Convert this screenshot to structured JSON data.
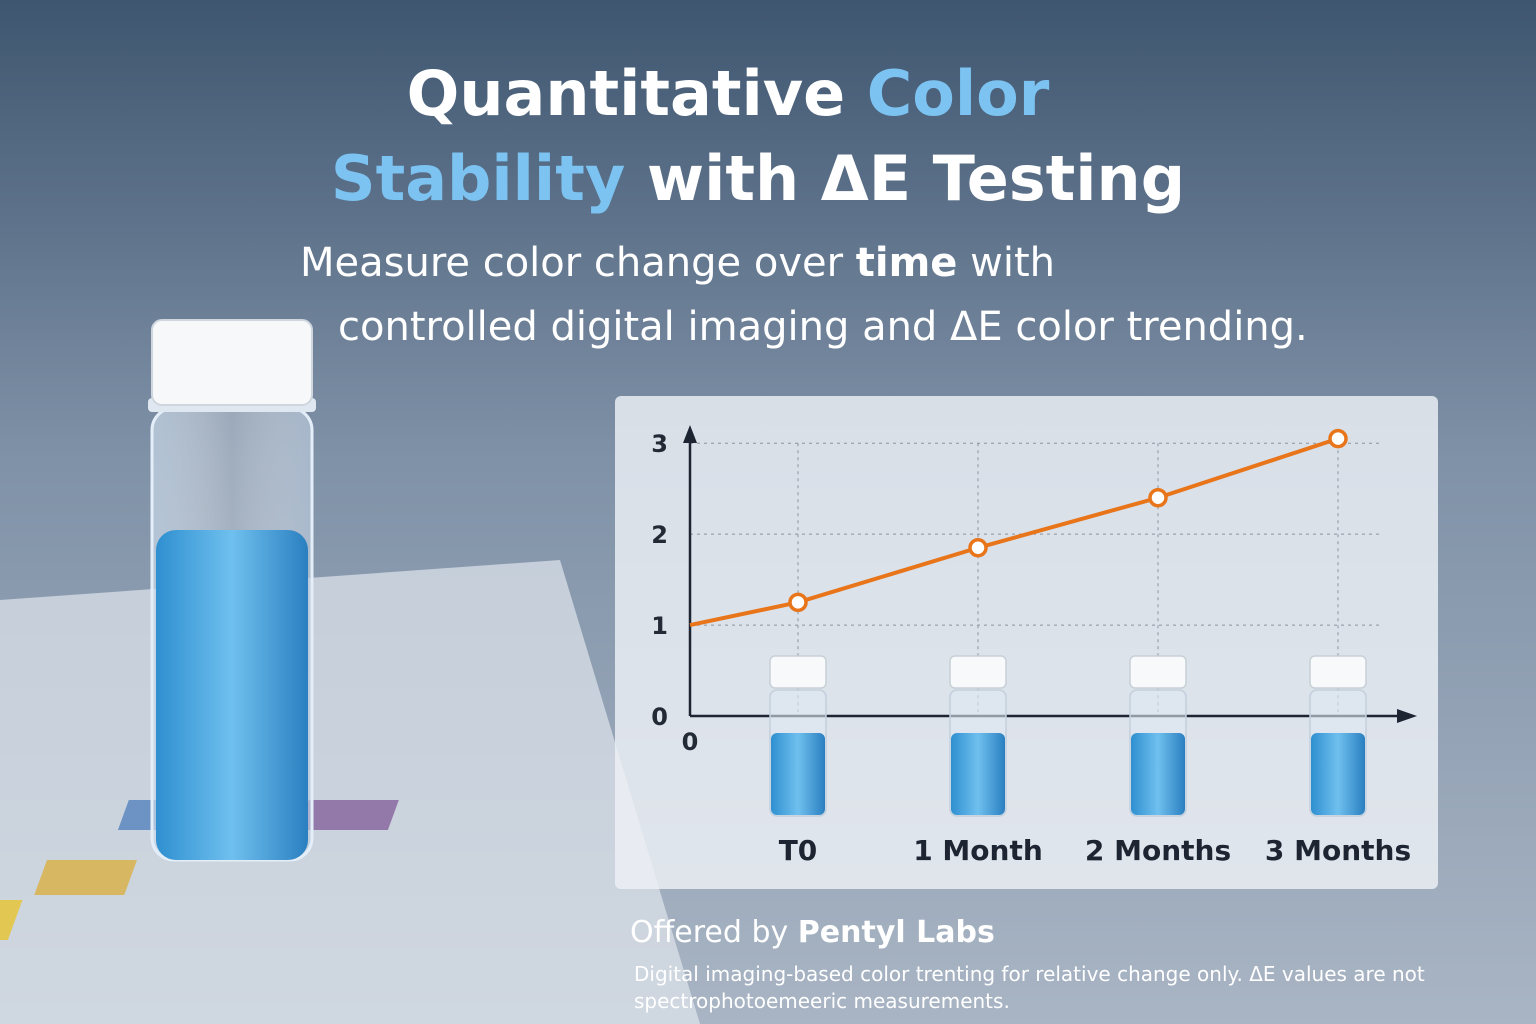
{
  "header": {
    "title": {
      "line1": [
        "Quantitative",
        "Color"
      ],
      "line2": [
        "Stability",
        "with ΔE Testing"
      ]
    },
    "subtitle": {
      "line1": [
        "Measure color change over",
        "time",
        "with"
      ],
      "line2": "controlled digital imaging and ΔE color trending."
    }
  },
  "chart_data": {
    "type": "line",
    "categories": [
      "0",
      "T0",
      "1 Month",
      "2 Months",
      "3 Months"
    ],
    "values": [
      1,
      1.25,
      1.85,
      2.4,
      3.05
    ],
    "color": "#e8751a",
    "ylim": [
      0,
      3.2
    ],
    "yticks": [
      0,
      1,
      2,
      3
    ],
    "grid": true
  },
  "footer": {
    "offered": [
      "Offered by",
      "Pentyl Labs"
    ],
    "disclaimer": [
      "Digital imaging-based color trenting for relative change only. ΔE values are not",
      "spectrophotoemeeric measurements."
    ]
  }
}
